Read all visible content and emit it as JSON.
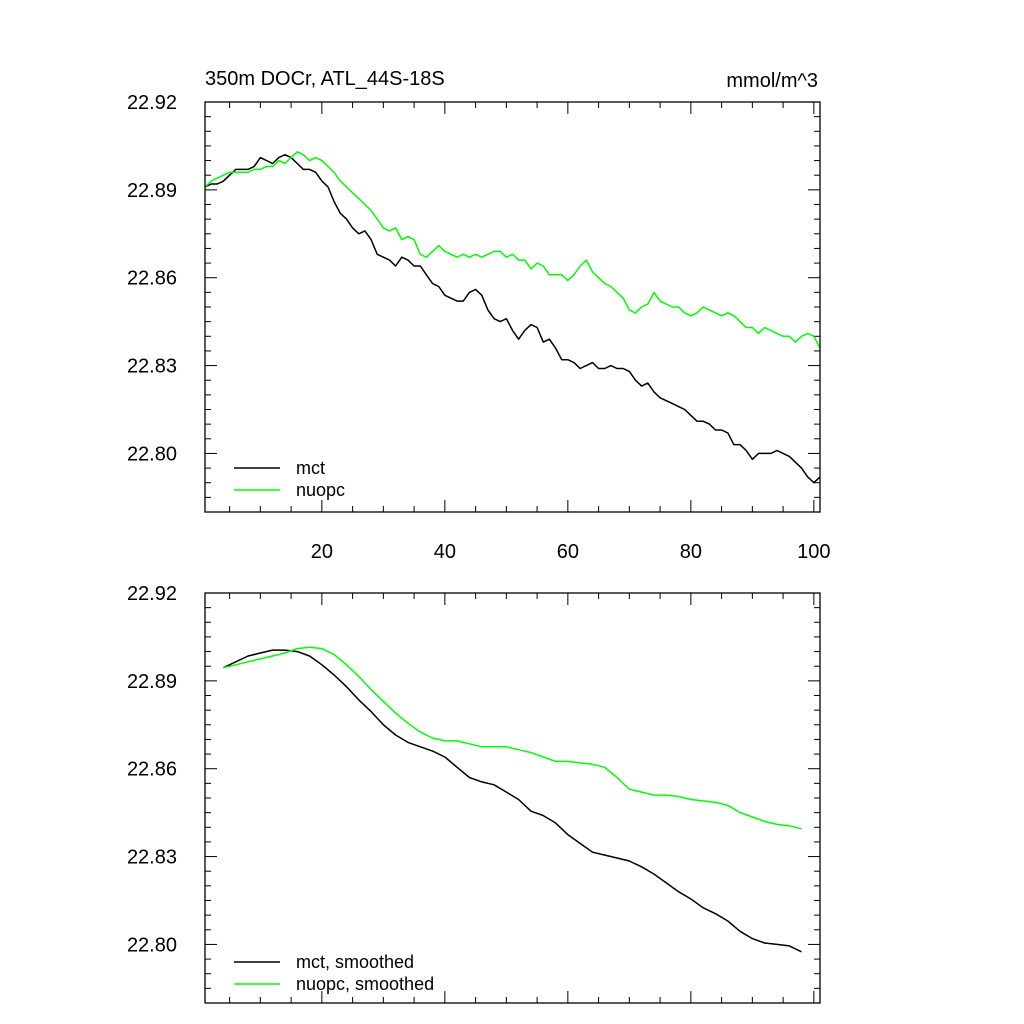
{
  "chart_data": [
    {
      "type": "line",
      "title": "350m DOCr, ATL_44S-18S",
      "units": "mmol/m^3",
      "xlim": [
        1,
        101
      ],
      "ylim": [
        22.78,
        22.92
      ],
      "xticks": [
        20,
        40,
        60,
        80,
        100
      ],
      "xtick_labels": [
        "20",
        "40",
        "60",
        "80",
        "100"
      ],
      "yticks": [
        22.8,
        22.83,
        22.86,
        22.89,
        22.92
      ],
      "ytick_labels": [
        "22.80",
        "22.83",
        "22.86",
        "22.89",
        "22.92"
      ],
      "legend": "bottom-left",
      "series": [
        {
          "name": "mct",
          "color": "#000000",
          "x": [
            1,
            2,
            3,
            4,
            5,
            6,
            7,
            8,
            9,
            10,
            11,
            12,
            13,
            14,
            15,
            16,
            17,
            18,
            19,
            20,
            21,
            22,
            23,
            24,
            25,
            26,
            27,
            28,
            29,
            30,
            31,
            32,
            33,
            34,
            35,
            36,
            37,
            38,
            39,
            40,
            41,
            42,
            43,
            44,
            45,
            46,
            47,
            48,
            49,
            50,
            51,
            52,
            53,
            54,
            55,
            56,
            57,
            58,
            59,
            60,
            61,
            62,
            63,
            64,
            65,
            66,
            67,
            68,
            69,
            70,
            71,
            72,
            73,
            74,
            75,
            76,
            77,
            78,
            79,
            80,
            81,
            82,
            83,
            84,
            85,
            86,
            87,
            88,
            89,
            90,
            91,
            92,
            93,
            94,
            95,
            96,
            97,
            98,
            99,
            100,
            101
          ],
          "values": [
            22.891,
            22.892,
            22.892,
            22.893,
            22.895,
            22.897,
            22.897,
            22.897,
            22.898,
            22.901,
            22.9,
            22.899,
            22.901,
            22.902,
            22.901,
            22.899,
            22.897,
            22.897,
            22.896,
            22.893,
            22.891,
            22.886,
            22.882,
            22.88,
            22.877,
            22.875,
            22.876,
            22.873,
            22.868,
            22.867,
            22.866,
            22.864,
            22.867,
            22.866,
            22.864,
            22.864,
            22.861,
            22.858,
            22.857,
            22.854,
            22.853,
            22.852,
            22.852,
            22.855,
            22.856,
            22.854,
            22.849,
            22.846,
            22.845,
            22.846,
            22.842,
            22.839,
            22.842,
            22.844,
            22.843,
            22.838,
            22.839,
            22.836,
            22.832,
            22.832,
            22.831,
            22.829,
            22.83,
            22.831,
            22.829,
            22.829,
            22.83,
            22.829,
            22.829,
            22.828,
            22.825,
            22.823,
            22.824,
            22.821,
            22.819,
            22.818,
            22.817,
            22.816,
            22.815,
            22.813,
            22.811,
            22.811,
            22.81,
            22.808,
            22.808,
            22.807,
            22.803,
            22.803,
            22.801,
            22.798,
            22.8,
            22.8,
            22.8,
            22.801,
            22.8,
            22.799,
            22.797,
            22.795,
            22.792,
            22.79,
            22.792
          ]
        },
        {
          "name": "nuopc",
          "color": "#00ff00",
          "x": [
            1,
            2,
            3,
            4,
            5,
            6,
            7,
            8,
            9,
            10,
            11,
            12,
            13,
            14,
            15,
            16,
            17,
            18,
            19,
            20,
            21,
            22,
            23,
            24,
            25,
            26,
            27,
            28,
            29,
            30,
            31,
            32,
            33,
            34,
            35,
            36,
            37,
            38,
            39,
            40,
            41,
            42,
            43,
            44,
            45,
            46,
            47,
            48,
            49,
            50,
            51,
            52,
            53,
            54,
            55,
            56,
            57,
            58,
            59,
            60,
            61,
            62,
            63,
            64,
            65,
            66,
            67,
            68,
            69,
            70,
            71,
            72,
            73,
            74,
            75,
            76,
            77,
            78,
            79,
            80,
            81,
            82,
            83,
            84,
            85,
            86,
            87,
            88,
            89,
            90,
            91,
            92,
            93,
            94,
            95,
            96,
            97,
            98,
            99,
            100,
            101
          ],
          "values": [
            22.891,
            22.893,
            22.894,
            22.895,
            22.896,
            22.896,
            22.896,
            22.896,
            22.897,
            22.897,
            22.898,
            22.898,
            22.9,
            22.899,
            22.901,
            22.903,
            22.902,
            22.9,
            22.901,
            22.9,
            22.898,
            22.896,
            22.893,
            22.891,
            22.889,
            22.887,
            22.885,
            22.883,
            22.88,
            22.877,
            22.876,
            22.877,
            22.873,
            22.874,
            22.873,
            22.868,
            22.867,
            22.869,
            22.871,
            22.869,
            22.868,
            22.867,
            22.868,
            22.867,
            22.868,
            22.867,
            22.868,
            22.869,
            22.869,
            22.867,
            22.868,
            22.866,
            22.866,
            22.863,
            22.865,
            22.864,
            22.861,
            22.861,
            22.861,
            22.859,
            22.861,
            22.864,
            22.866,
            22.862,
            22.86,
            22.858,
            22.857,
            22.855,
            22.853,
            22.849,
            22.848,
            22.85,
            22.851,
            22.855,
            22.852,
            22.851,
            22.85,
            22.85,
            22.848,
            22.847,
            22.848,
            22.85,
            22.849,
            22.848,
            22.847,
            22.848,
            22.847,
            22.845,
            22.843,
            22.843,
            22.841,
            22.843,
            22.842,
            22.841,
            22.84,
            22.84,
            22.838,
            22.84,
            22.841,
            22.84,
            22.836
          ]
        }
      ]
    },
    {
      "type": "line",
      "title": "",
      "xlim": [
        1,
        101
      ],
      "ylim": [
        22.78,
        22.92
      ],
      "xticks": [
        20,
        40,
        60,
        80,
        100
      ],
      "yticks": [
        22.8,
        22.83,
        22.86,
        22.89,
        22.92
      ],
      "ytick_labels": [
        "22.80",
        "22.83",
        "22.86",
        "22.89",
        "22.92"
      ],
      "legend": "bottom-left",
      "series": [
        {
          "name": "mct, smoothed",
          "color": "#000000",
          "x": [
            4,
            6,
            8,
            10,
            12,
            14,
            16,
            18,
            20,
            22,
            24,
            26,
            28,
            30,
            32,
            34,
            36,
            38,
            40,
            42,
            44,
            46,
            48,
            50,
            52,
            54,
            56,
            58,
            60,
            62,
            64,
            66,
            68,
            70,
            72,
            74,
            76,
            78,
            80,
            82,
            84,
            86,
            88,
            90,
            92,
            94,
            96,
            98
          ],
          "values": [
            22.8945,
            22.8965,
            22.8985,
            22.8995,
            22.9005,
            22.9005,
            22.9,
            22.8985,
            22.8955,
            22.892,
            22.888,
            22.8835,
            22.8795,
            22.875,
            22.8715,
            22.869,
            22.8675,
            22.866,
            22.864,
            22.8605,
            22.857,
            22.8555,
            22.8545,
            22.852,
            22.8495,
            22.8455,
            22.844,
            22.8415,
            22.8375,
            22.8345,
            22.8315,
            22.8305,
            22.8295,
            22.8285,
            22.8265,
            22.824,
            22.821,
            22.818,
            22.8155,
            22.8125,
            22.8105,
            22.808,
            22.8045,
            22.802,
            22.8005,
            22.8,
            22.7995,
            22.7975
          ]
        },
        {
          "name": "nuopc, smoothed",
          "color": "#00ff00",
          "x": [
            4,
            6,
            8,
            10,
            12,
            14,
            16,
            18,
            20,
            22,
            24,
            26,
            28,
            30,
            32,
            34,
            36,
            38,
            40,
            42,
            44,
            46,
            48,
            50,
            52,
            54,
            56,
            58,
            60,
            62,
            64,
            66,
            68,
            70,
            72,
            74,
            76,
            78,
            80,
            82,
            84,
            86,
            88,
            90,
            92,
            94,
            96,
            98
          ],
          "values": [
            22.8945,
            22.8955,
            22.8965,
            22.8975,
            22.8985,
            22.8995,
            22.901,
            22.9015,
            22.901,
            22.899,
            22.8955,
            22.8915,
            22.887,
            22.883,
            22.879,
            22.8755,
            22.8725,
            22.8705,
            22.8695,
            22.8695,
            22.8685,
            22.8675,
            22.8675,
            22.8675,
            22.8665,
            22.8655,
            22.864,
            22.8625,
            22.8625,
            22.862,
            22.8615,
            22.8605,
            22.857,
            22.853,
            22.852,
            22.851,
            22.851,
            22.8505,
            22.8495,
            22.849,
            22.8485,
            22.8475,
            22.845,
            22.8435,
            22.842,
            22.841,
            22.8405,
            22.8395
          ]
        }
      ]
    }
  ]
}
